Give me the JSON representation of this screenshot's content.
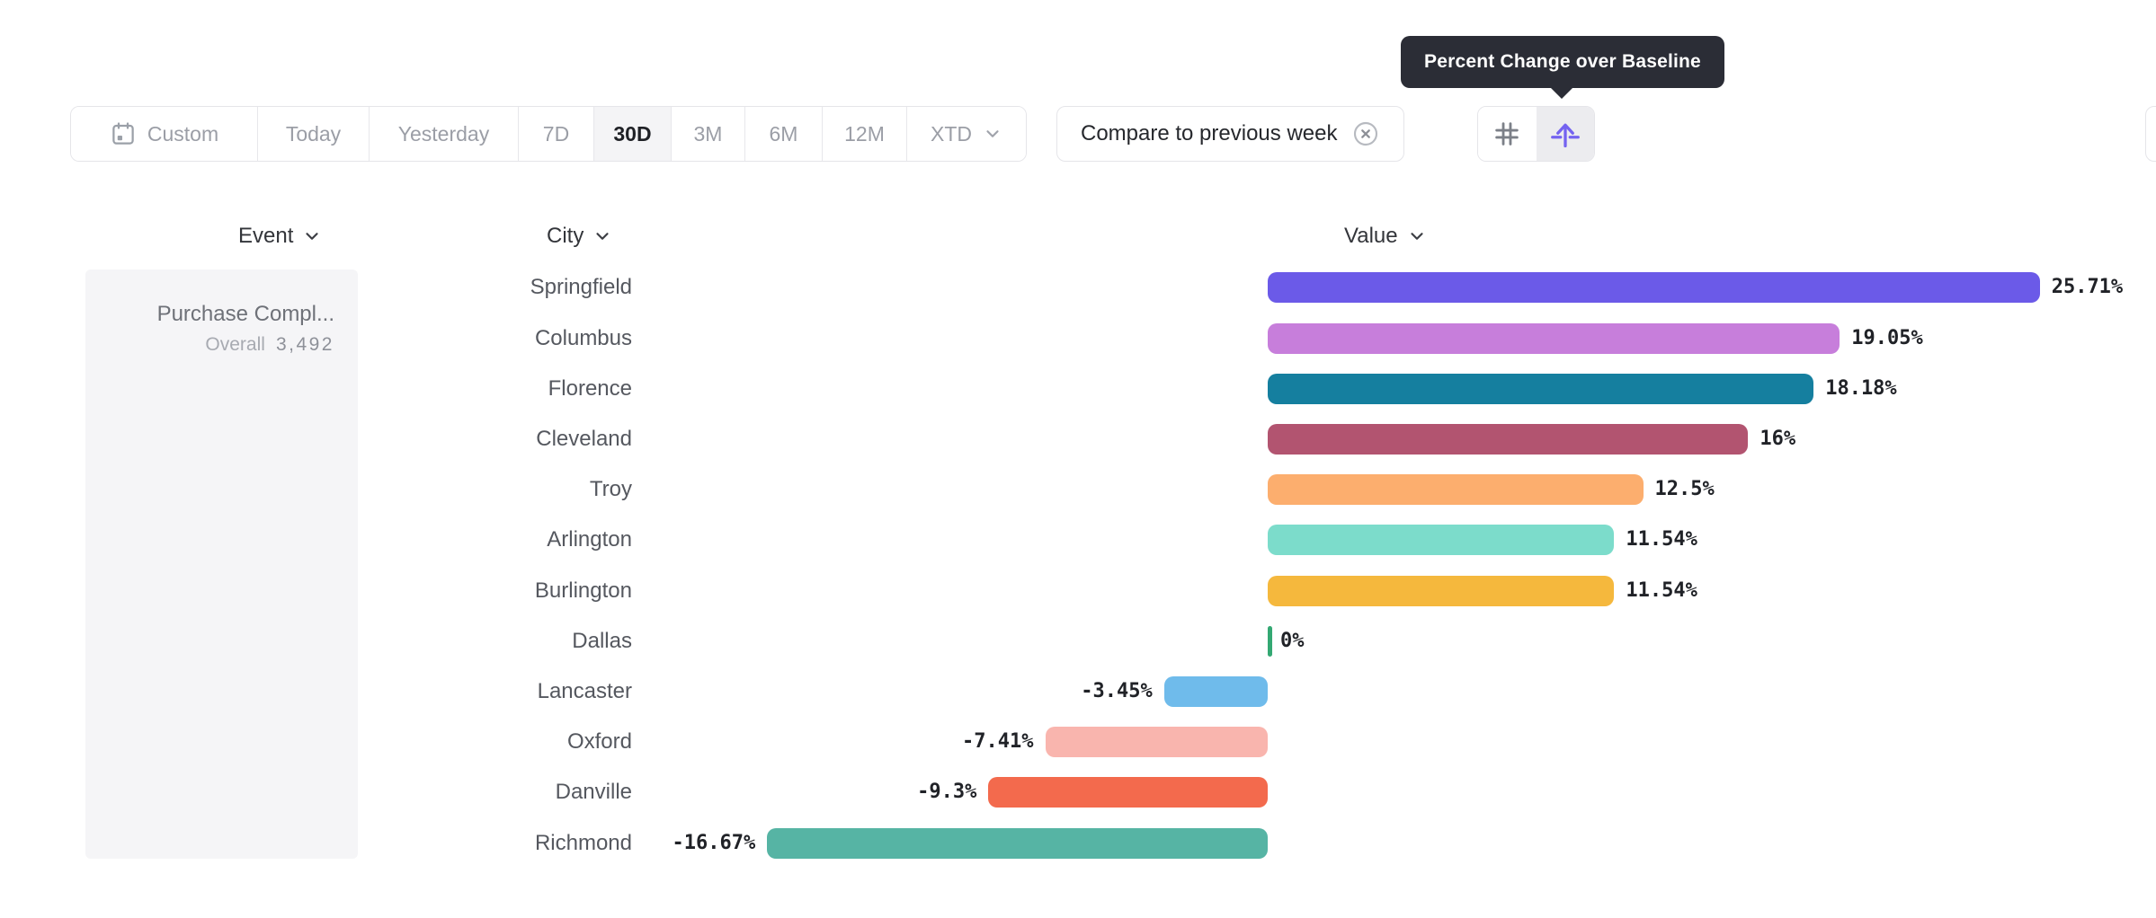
{
  "tooltip": {
    "text": "Percent Change over Baseline"
  },
  "toolbar": {
    "date_ranges": [
      {
        "label": "Custom",
        "icon": "calendar",
        "selected": false
      },
      {
        "label": "Today",
        "selected": false
      },
      {
        "label": "Yesterday",
        "selected": false
      },
      {
        "label": "7D",
        "selected": false
      },
      {
        "label": "30D",
        "selected": true
      },
      {
        "label": "3M",
        "selected": false
      },
      {
        "label": "6M",
        "selected": false
      },
      {
        "label": "12M",
        "selected": false
      },
      {
        "label": "XTD",
        "chevron": true,
        "selected": false
      }
    ],
    "compare_chip": {
      "label": "Compare to previous week"
    },
    "view_toggle": {
      "options": [
        "grid-view",
        "percent-change-baseline-view"
      ],
      "selected": "percent-change-baseline-view",
      "accent_color": "#7463F0"
    }
  },
  "columns": [
    {
      "label": "Event"
    },
    {
      "label": "City"
    },
    {
      "label": "Value"
    }
  ],
  "event_card": {
    "title": "Purchase Compl...",
    "metric_label": "Overall",
    "metric_value": "3,492"
  },
  "chart_data": {
    "type": "bar",
    "orientation": "horizontal",
    "group_by": "City",
    "metric": "Percent Change over Baseline",
    "categories": [
      "Springfield",
      "Columbus",
      "Florence",
      "Cleveland",
      "Troy",
      "Arlington",
      "Burlington",
      "Dallas",
      "Lancaster",
      "Oxford",
      "Danville",
      "Richmond"
    ],
    "values": [
      25.71,
      19.05,
      18.18,
      16,
      12.5,
      11.54,
      11.54,
      0,
      -3.45,
      -7.41,
      -9.3,
      -16.67
    ],
    "value_labels": [
      "25.71%",
      "19.05%",
      "18.18%",
      "16%",
      "12.5%",
      "11.54%",
      "11.54%",
      "0%",
      "-3.45%",
      "-7.41%",
      "-9.3%",
      "-16.67%"
    ],
    "bar_colors": [
      "#6B5AE8",
      "#C77EDB",
      "#157F9F",
      "#B25470",
      "#FCAE6E",
      "#7CDCCB",
      "#F5B83D",
      "#34A873",
      "#6FBBEB",
      "#F9B5AE",
      "#F36A4D",
      "#56B4A4"
    ],
    "baseline": 0,
    "xlim": [
      -16.67,
      25.71
    ],
    "grid": false,
    "legend": false
  }
}
